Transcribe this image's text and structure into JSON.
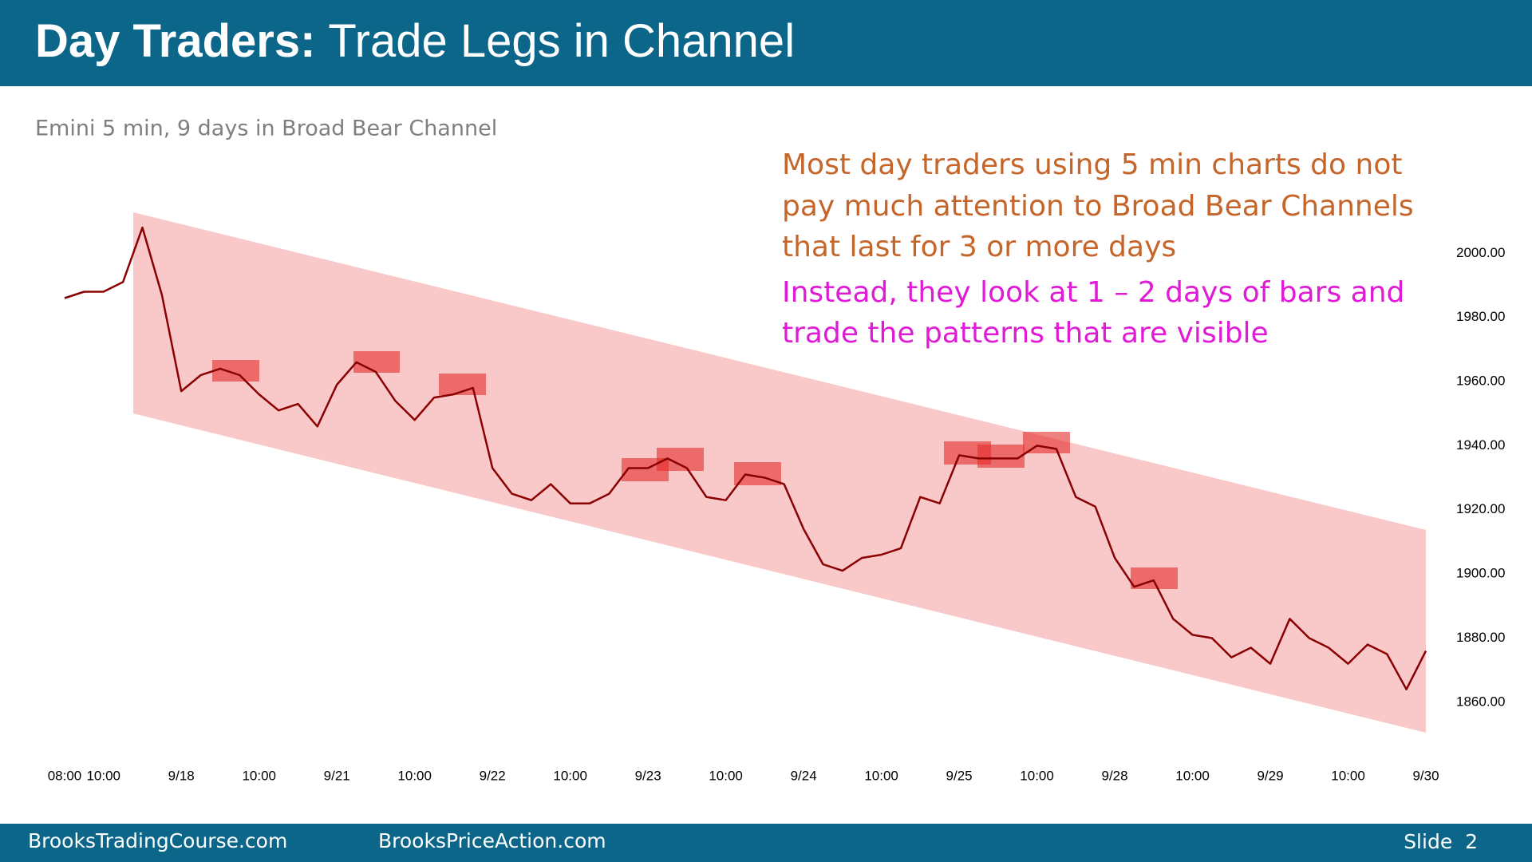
{
  "header": {
    "title_bold": "Day Traders:",
    "title_rest": "Trade Legs in Channel"
  },
  "chart_data": {
    "type": "line",
    "subtitle": "Emini 5 min, 9 days in Broad Bear Channel",
    "annotations": {
      "orange": [
        "Most day traders using 5 min charts do not",
        "pay much attention to Broad Bear Channels",
        "that last for 3 or more days"
      ],
      "magenta": [
        "Instead, they look at 1 – 2 days of bars and",
        "trade the patterns that are visible"
      ]
    },
    "categories": [
      "08:00",
      null,
      "10:00",
      null,
      null,
      null,
      "9/18",
      null,
      null,
      null,
      "10:00",
      null,
      null,
      null,
      "9/21",
      null,
      null,
      null,
      "10:00",
      null,
      null,
      null,
      "9/22",
      null,
      null,
      null,
      "10:00",
      null,
      null,
      null,
      "9/23",
      null,
      null,
      null,
      "10:00",
      null,
      null,
      null,
      "9/24",
      null,
      null,
      null,
      "10:00",
      null,
      null,
      null,
      "9/25",
      null,
      null,
      null,
      "10:00",
      null,
      null,
      null,
      "9/28",
      null,
      null,
      null,
      "10:00",
      null,
      null,
      null,
      "9/29",
      null,
      null,
      null,
      "10:00",
      null,
      null,
      null,
      "9/30"
    ],
    "series": [
      {
        "name": "Emini",
        "color": "#8b0000",
        "values": [
          1986,
          1988,
          1988,
          1991,
          2008,
          1987,
          1957,
          1962,
          1964,
          1962,
          1956,
          1951,
          1953,
          1946,
          1959,
          1966,
          1963,
          1954,
          1948,
          1955,
          1956,
          1958,
          1933,
          1925,
          1923,
          1928,
          1922,
          1922,
          1925,
          1933,
          1933,
          1936,
          1933,
          1924,
          1923,
          1931,
          1930,
          1928,
          1914,
          1903,
          1901,
          1905,
          1906,
          1908,
          1924,
          1922,
          1937,
          1936,
          1936,
          1936,
          1940,
          1939,
          1924,
          1921,
          1905,
          1896,
          1898,
          1886,
          1881,
          1880,
          1874,
          1877,
          1872,
          1886,
          1880,
          1877,
          1872,
          1878,
          1875,
          1864,
          1876
        ]
      }
    ],
    "ylim": [
      1850,
      2015
    ],
    "yticks": [
      {
        "value": 1860,
        "label": "1860.00"
      },
      {
        "value": 1880,
        "label": "1880.00"
      },
      {
        "value": 1900,
        "label": "1900.00"
      },
      {
        "value": 1920,
        "label": "1920.00"
      },
      {
        "value": 1940,
        "label": "1940.00"
      },
      {
        "value": 1960,
        "label": "1960.00"
      },
      {
        "value": 1980,
        "label": "1980.00"
      },
      {
        "value": 2000,
        "label": "2000.00"
      }
    ],
    "grid": false
  },
  "footer": {
    "left": "BrooksTradingCourse.com",
    "middle": "BrooksPriceAction.com",
    "slide": "Slide  2"
  }
}
